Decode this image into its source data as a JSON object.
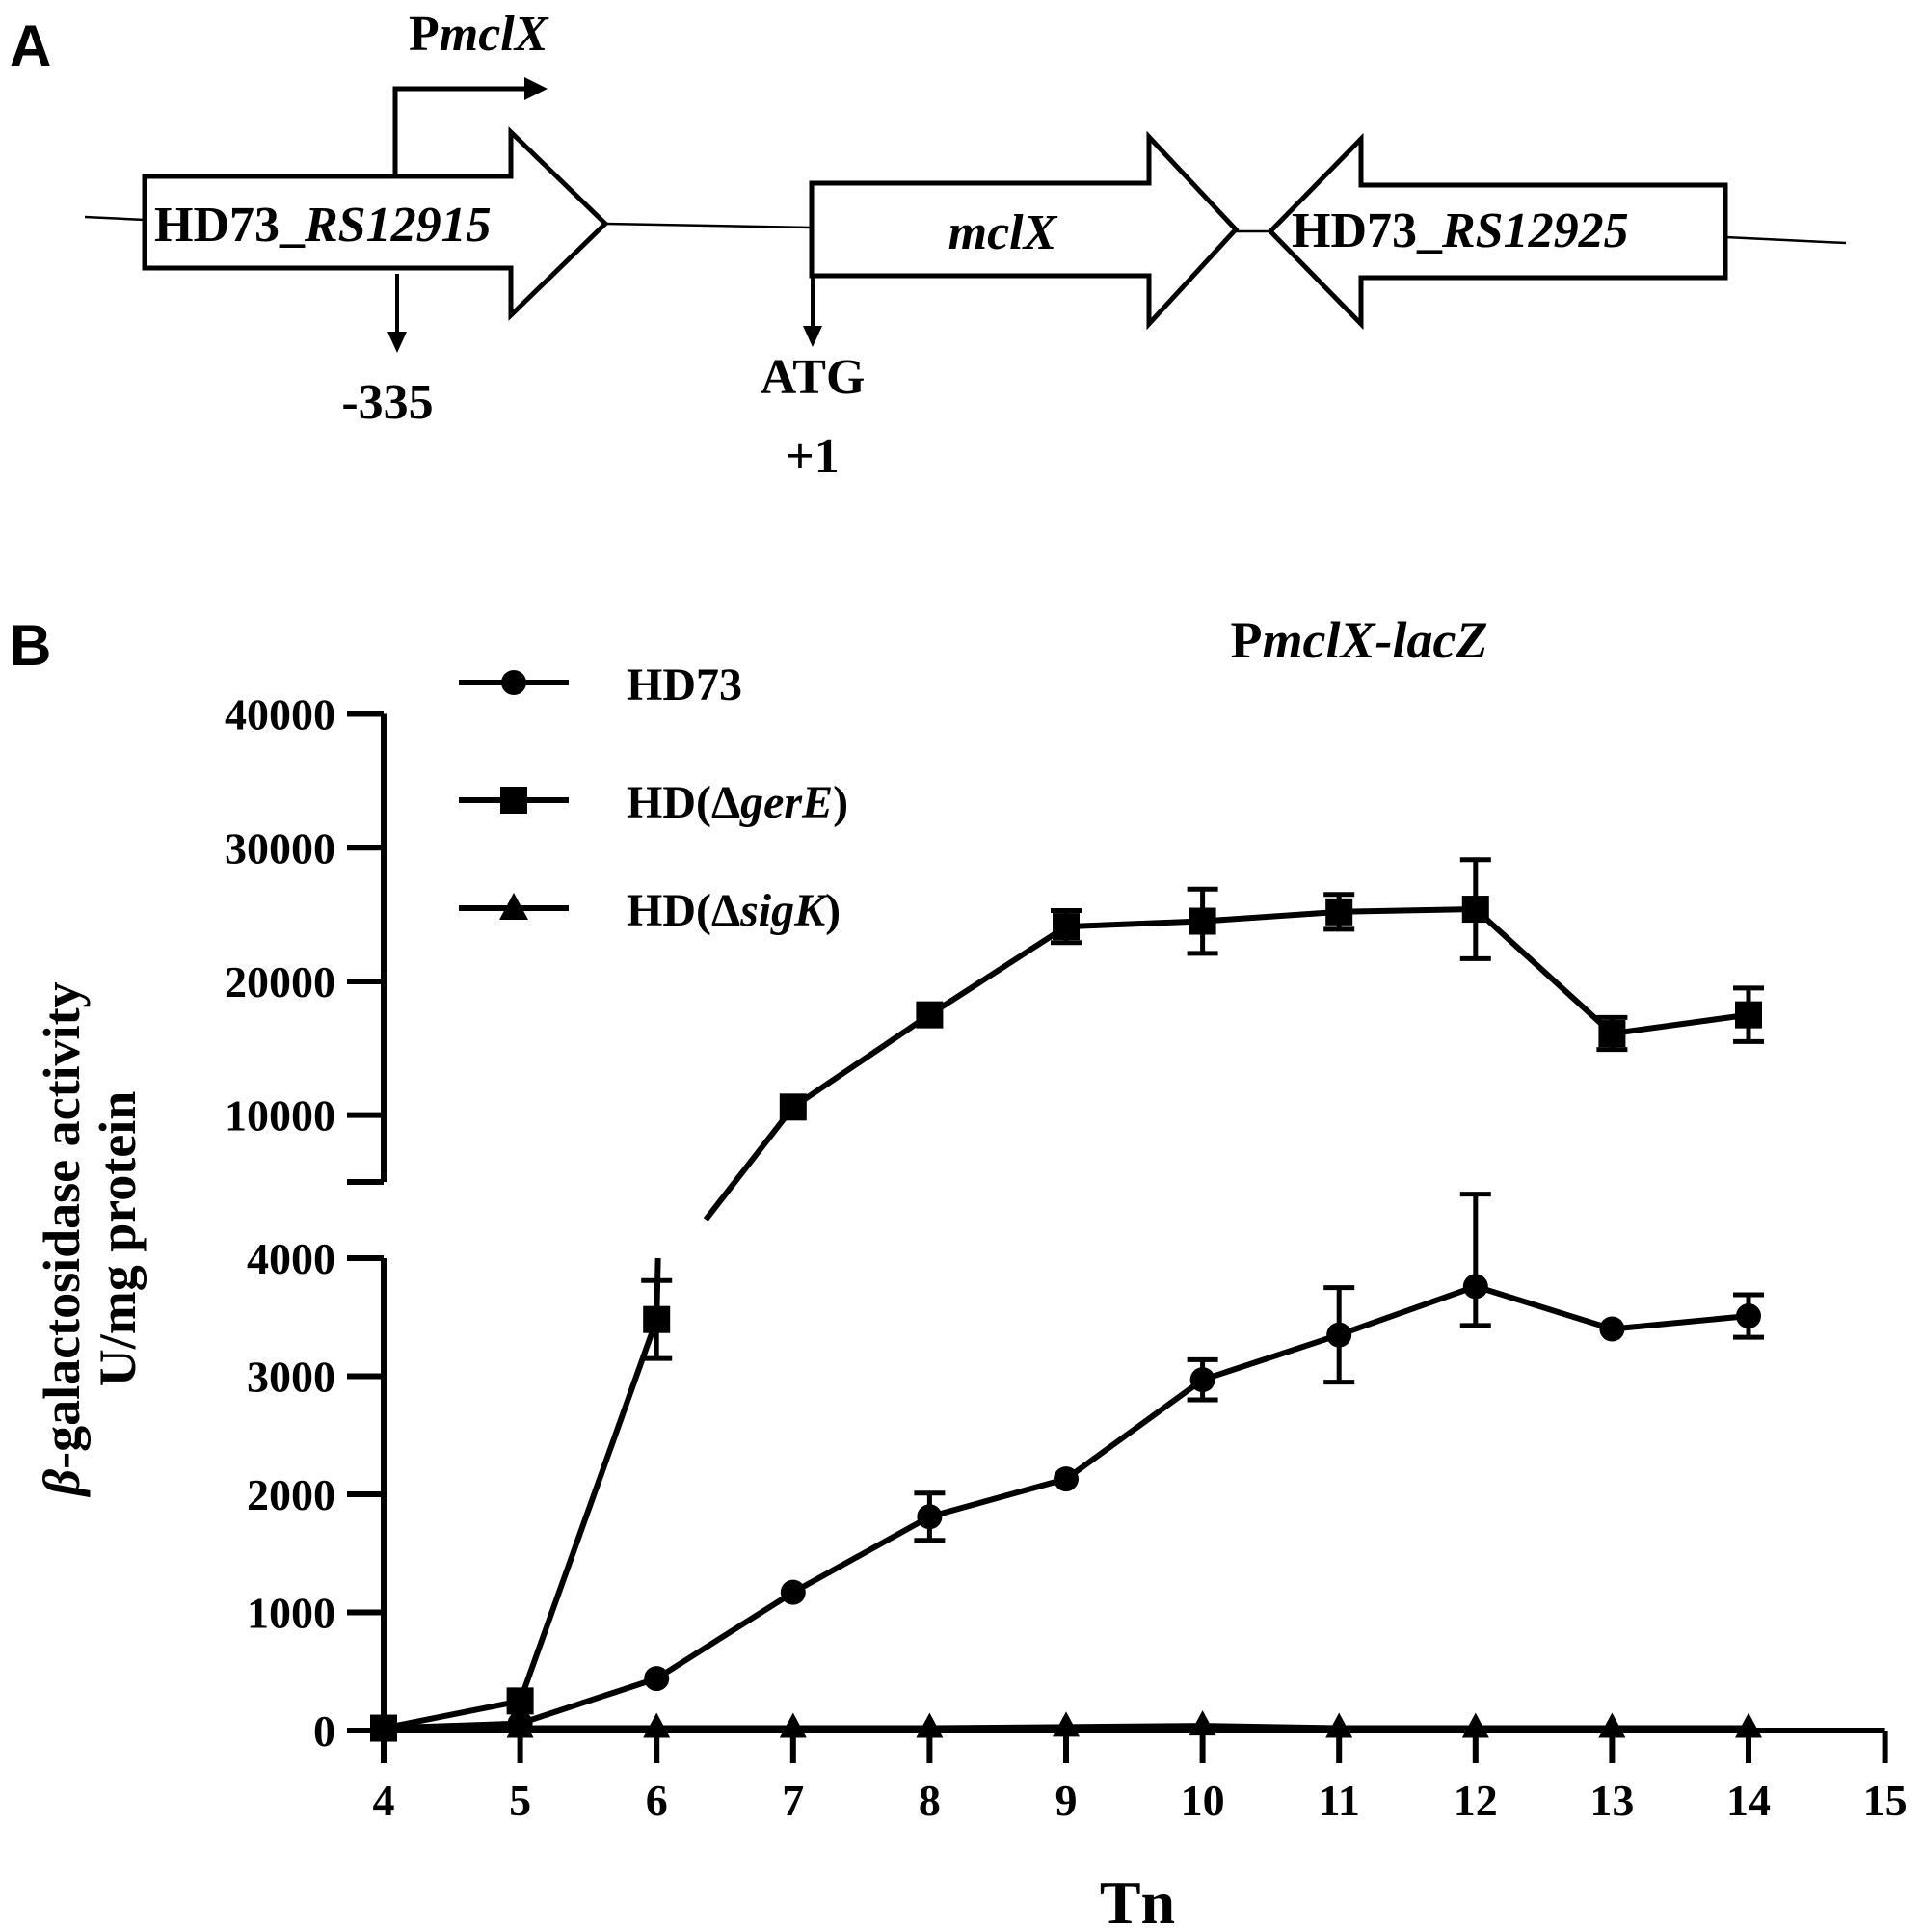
{
  "panel_a": {
    "letter": "A",
    "promoter_prefix": "P",
    "promoter_gene": "mclX",
    "gene1_prefix": "HD73_",
    "gene1_suffix": "RS12915",
    "gene2": "mclX",
    "gene3_prefix": "HD73_",
    "gene3_suffix": "RS12925",
    "pos_label": "-335",
    "atg_label": "ATG",
    "plus_label": "+1"
  },
  "panel_b": {
    "letter": "B",
    "legend": [
      {
        "prefix": "HD73",
        "italic": "",
        "suffix": "",
        "marker": "circle"
      },
      {
        "prefix": "HD(Δ",
        "italic": "gerE",
        "suffix": ")",
        "marker": "square"
      },
      {
        "prefix": "HD(Δ",
        "italic": "sigK",
        "suffix": ")",
        "marker": "triangle"
      }
    ]
  },
  "chart_data": {
    "type": "line",
    "title_prefix": "P",
    "title_italic": "mclX-lacZ",
    "ylabel_italic": "β",
    "ylabel_rest": "-galactosidase activity",
    "ylabel_line2": "U/mg protein",
    "xlabel": "Tn",
    "xlim": [
      4,
      15
    ],
    "x_ticks": [
      4,
      5,
      6,
      7,
      8,
      9,
      10,
      11,
      12,
      13,
      14,
      15
    ],
    "y_axis_break": true,
    "ylim_lower": [
      0,
      4000
    ],
    "ylim_upper": [
      5000,
      40000
    ],
    "y_ticks_lower": [
      0,
      1000,
      2000,
      3000,
      4000
    ],
    "y_ticks_upper": [
      10000,
      20000,
      30000,
      40000
    ],
    "grid": false,
    "legend_position": "top-left",
    "series": [
      {
        "name": "HD73",
        "marker": "circle",
        "x": [
          4,
          5,
          6,
          7,
          8,
          9,
          10,
          11,
          12,
          13,
          14
        ],
        "y": [
          20,
          60,
          440,
          1170,
          1810,
          2130,
          2970,
          3350,
          3760,
          3400,
          3510
        ],
        "err": [
          0,
          0,
          0,
          0,
          200,
          0,
          170,
          400,
          330,
          0,
          180
        ]
      },
      {
        "name": "HD(ΔgerE)",
        "marker": "square",
        "x": [
          4,
          5,
          6,
          7,
          8,
          9,
          10,
          11,
          12,
          13,
          14
        ],
        "y": [
          20,
          250,
          3480,
          10600,
          17500,
          24100,
          24500,
          25200,
          25400,
          16100,
          17500
        ],
        "err": [
          0,
          0,
          330,
          0,
          0,
          1200,
          2400,
          1300,
          3700,
          1200,
          2000
        ]
      },
      {
        "name": "HD(ΔsigK)",
        "marker": "triangle",
        "x": [
          4,
          5,
          6,
          7,
          8,
          9,
          10,
          11,
          12,
          13,
          14
        ],
        "y": [
          20,
          20,
          20,
          20,
          20,
          30,
          40,
          20,
          20,
          20,
          20
        ],
        "err": [
          0,
          0,
          0,
          0,
          0,
          0,
          0,
          0,
          0,
          0,
          0
        ]
      }
    ]
  }
}
